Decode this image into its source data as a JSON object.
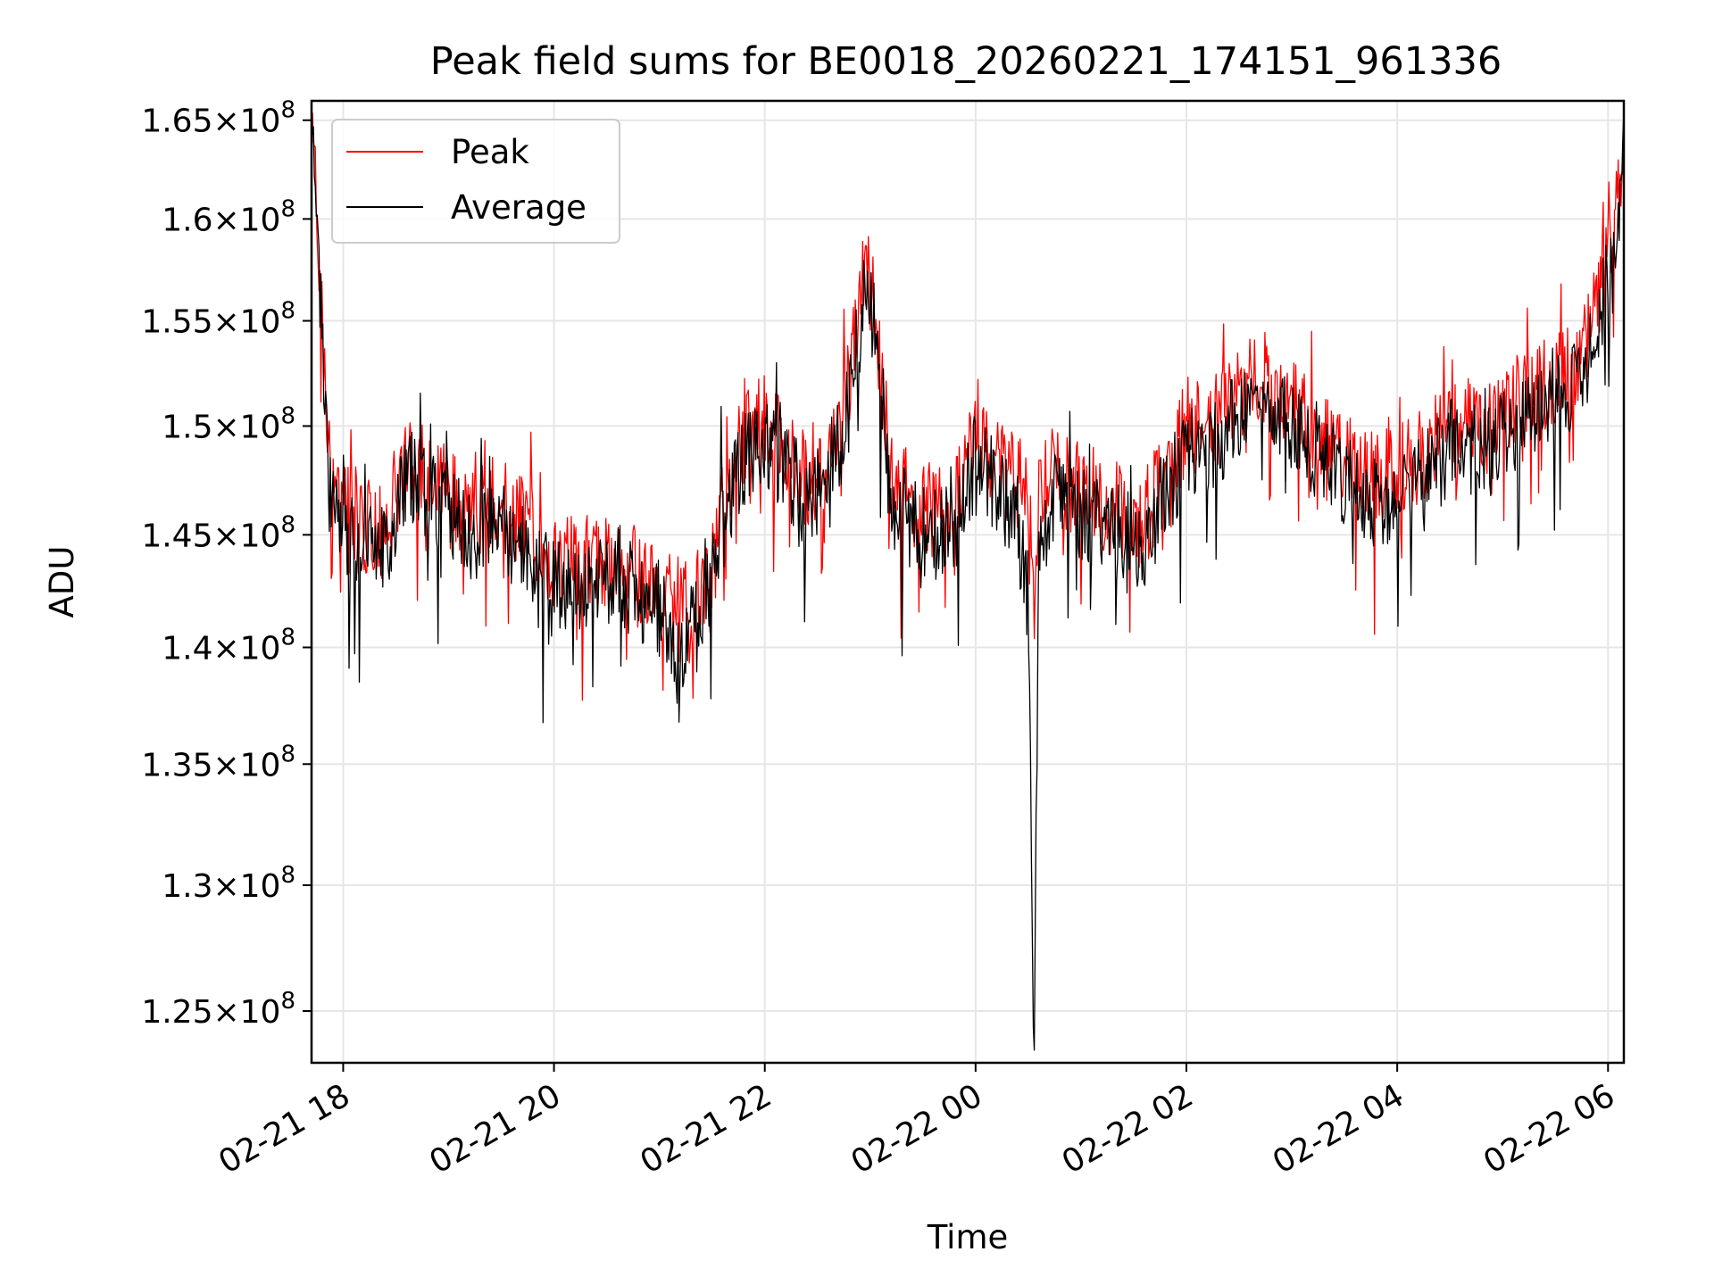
{
  "chart_data": {
    "type": "line",
    "title": "Peak field sums for BE0018_20260221_174151_961336",
    "xlabel": "Time",
    "ylabel": "ADU",
    "yscale": "log",
    "x_unit": "hours since 02-21 00:00",
    "xlim": [
      17.7,
      30.15
    ],
    "ylim": [
      123000000,
      166000000
    ],
    "grid": true,
    "legend_position": "top-left",
    "x_ticks": [
      {
        "value": 18,
        "label": "02-21 18"
      },
      {
        "value": 20,
        "label": "02-21 20"
      },
      {
        "value": 22,
        "label": "02-21 22"
      },
      {
        "value": 24,
        "label": "02-22 00"
      },
      {
        "value": 26,
        "label": "02-22 02"
      },
      {
        "value": 28,
        "label": "02-22 04"
      },
      {
        "value": 30,
        "label": "02-22 06"
      }
    ],
    "y_ticks": [
      {
        "value": 125000000,
        "mantissa": "1.25",
        "exponent": "8"
      },
      {
        "value": 130000000,
        "mantissa": "1.3",
        "exponent": "8"
      },
      {
        "value": 135000000,
        "mantissa": "1.35",
        "exponent": "8"
      },
      {
        "value": 140000000,
        "mantissa": "1.4",
        "exponent": "8"
      },
      {
        "value": 145000000,
        "mantissa": "1.45",
        "exponent": "8"
      },
      {
        "value": 150000000,
        "mantissa": "1.5",
        "exponent": "8"
      },
      {
        "value": 155000000,
        "mantissa": "1.55",
        "exponent": "8"
      },
      {
        "value": 160000000,
        "mantissa": "1.6",
        "exponent": "8"
      },
      {
        "value": 165000000,
        "mantissa": "1.65",
        "exponent": "8"
      }
    ],
    "y_tick_times_symbol": "×",
    "y_tick_base": "10",
    "series": [
      {
        "name": "Peak",
        "color": "#ff0000",
        "x": [
          17.7,
          17.75,
          17.8,
          17.85,
          17.9,
          18.0,
          18.2,
          18.4,
          18.6,
          18.8,
          19.0,
          19.2,
          19.4,
          19.6,
          19.8,
          20.0,
          20.2,
          20.4,
          20.6,
          20.8,
          21.0,
          21.2,
          21.4,
          21.6,
          21.8,
          22.0,
          22.2,
          22.4,
          22.6,
          22.8,
          22.95,
          23.05,
          23.2,
          23.4,
          23.6,
          23.8,
          24.0,
          24.2,
          24.4,
          24.5,
          24.55,
          24.6,
          24.7,
          24.8,
          25.0,
          25.2,
          25.4,
          25.6,
          25.8,
          26.0,
          26.2,
          26.4,
          26.6,
          26.8,
          27.0,
          27.2,
          27.4,
          27.6,
          27.8,
          28.0,
          28.2,
          28.4,
          28.6,
          28.8,
          29.0,
          29.2,
          29.4,
          29.6,
          29.8,
          29.9,
          30.0,
          30.1,
          30.15
        ],
        "values": [
          165500000,
          160000000,
          155000000,
          150000000,
          147000000,
          146500000,
          145500000,
          145000000,
          149000000,
          148000000,
          147000000,
          146000000,
          146500000,
          146000000,
          145000000,
          143500000,
          144000000,
          143500000,
          144500000,
          143000000,
          142500000,
          141500000,
          142500000,
          147000000,
          149500000,
          150500000,
          149000000,
          147500000,
          148000000,
          152000000,
          158000000,
          155500000,
          147500000,
          146500000,
          146000000,
          146500000,
          149500000,
          148000000,
          147500000,
          146500000,
          141000000,
          146500000,
          148000000,
          147500000,
          147000000,
          146500000,
          146000000,
          145500000,
          148000000,
          149500000,
          150000000,
          151000000,
          152000000,
          151500000,
          151000000,
          150000000,
          149000000,
          148000000,
          147500000,
          148000000,
          148500000,
          149500000,
          150500000,
          149500000,
          150500000,
          151500000,
          152000000,
          152500000,
          154000000,
          156000000,
          158000000,
          161000000,
          164500000
        ]
      },
      {
        "name": "Average",
        "color": "#000000",
        "x": [
          17.7,
          17.75,
          17.8,
          17.85,
          17.9,
          18.0,
          18.2,
          18.4,
          18.6,
          18.8,
          19.0,
          19.2,
          19.4,
          19.6,
          19.8,
          20.0,
          20.2,
          20.4,
          20.6,
          20.8,
          21.0,
          21.2,
          21.4,
          21.6,
          21.8,
          22.0,
          22.2,
          22.4,
          22.6,
          22.8,
          22.95,
          23.05,
          23.2,
          23.4,
          23.6,
          23.8,
          24.0,
          24.2,
          24.4,
          24.5,
          24.55,
          24.6,
          24.7,
          24.8,
          25.0,
          25.2,
          25.4,
          25.6,
          25.8,
          26.0,
          26.2,
          26.4,
          26.6,
          26.8,
          27.0,
          27.2,
          27.4,
          27.6,
          27.8,
          28.0,
          28.2,
          28.4,
          28.6,
          28.8,
          29.0,
          29.2,
          29.4,
          29.6,
          29.8,
          29.9,
          30.0,
          30.1,
          30.15
        ],
        "values": [
          164500000,
          159000000,
          154000000,
          149000000,
          146000000,
          145500000,
          144500000,
          144000000,
          148000000,
          147000000,
          146000000,
          145000000,
          145500000,
          145000000,
          144000000,
          142500000,
          143000000,
          142500000,
          143500000,
          142000000,
          141500000,
          140000000,
          141000000,
          146000000,
          148500000,
          149500000,
          148000000,
          146500000,
          147000000,
          151000000,
          156500000,
          154500000,
          146500000,
          145500000,
          145000000,
          145500000,
          148500000,
          147000000,
          146000000,
          142000000,
          123000000,
          143000000,
          146500000,
          146500000,
          146000000,
          145500000,
          145000000,
          144500000,
          147000000,
          148500000,
          149000000,
          150000000,
          151000000,
          150500000,
          150000000,
          149000000,
          148000000,
          147000000,
          146500000,
          147000000,
          147500000,
          148500000,
          149500000,
          148500000,
          149500000,
          150500000,
          151000000,
          151500000,
          153000000,
          155000000,
          157000000,
          160000000,
          163500000
        ]
      }
    ]
  }
}
